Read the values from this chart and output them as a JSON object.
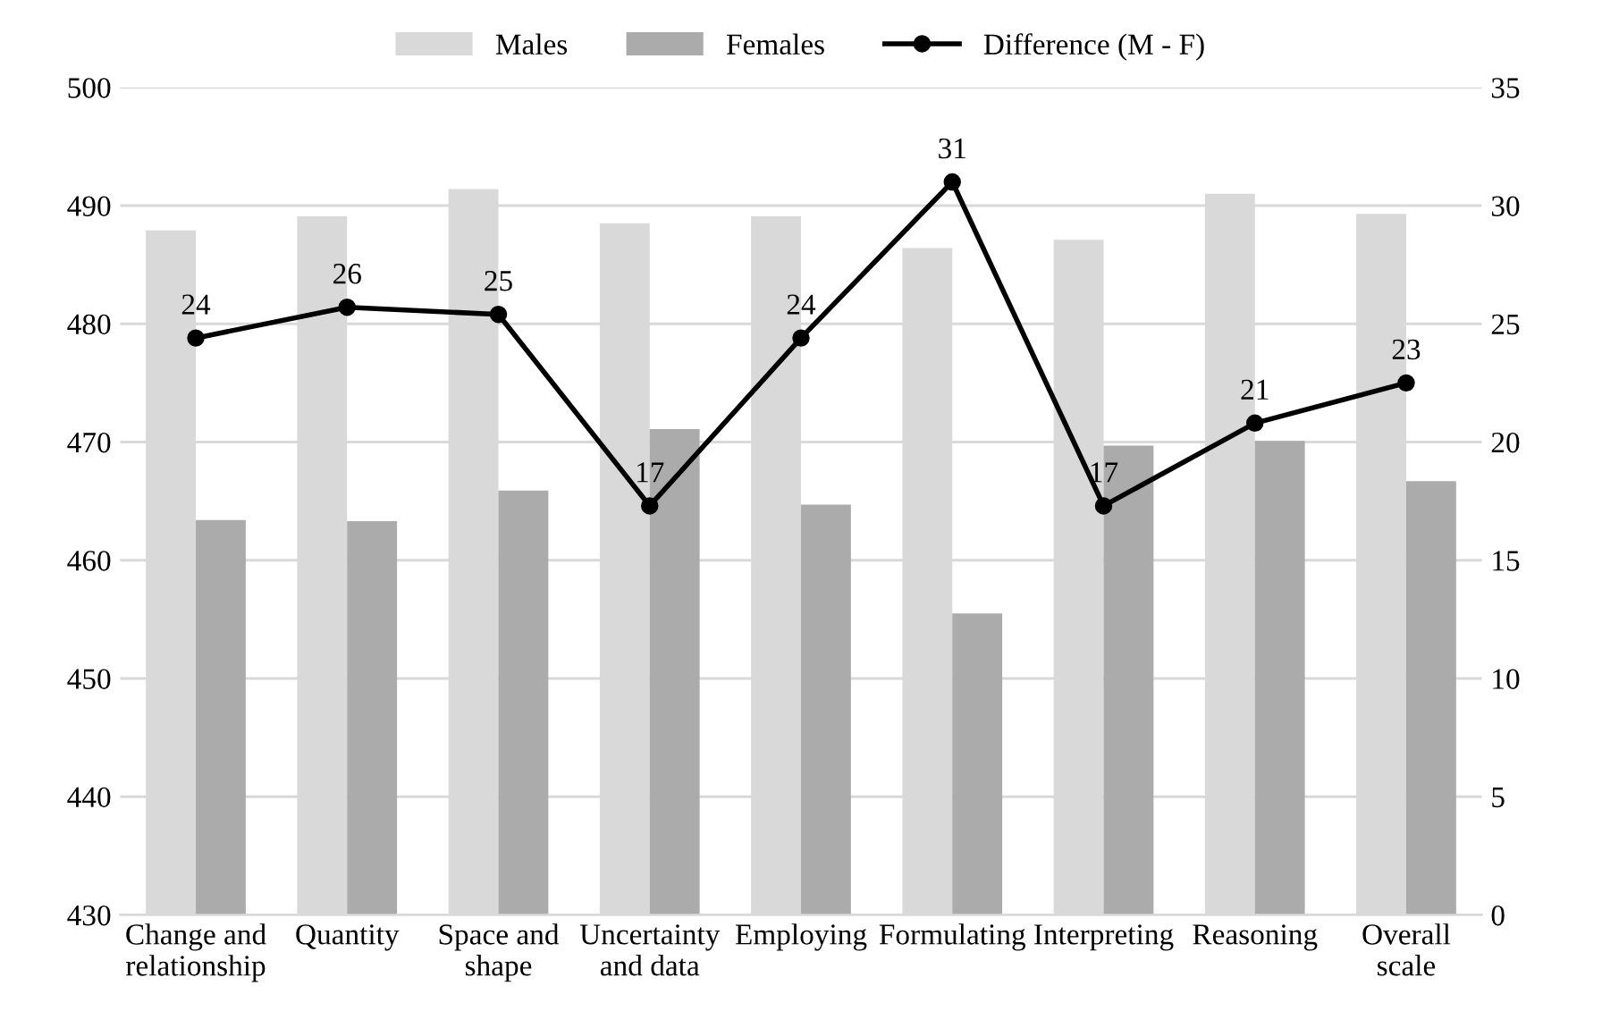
{
  "chart_data": {
    "type": "bar",
    "categories": [
      "Change and\nrelationship",
      "Quantity",
      "Space and\nshape",
      "Uncertainty\nand data",
      "Employing",
      "Formulating",
      "Interpreting",
      "Reasoning",
      "Overall\nscale"
    ],
    "series": [
      {
        "name": "Males",
        "color": "#d9d9d9",
        "values": [
          487.9,
          489.1,
          491.4,
          488.5,
          489.1,
          486.4,
          487.1,
          491.0,
          489.3
        ]
      },
      {
        "name": "Females",
        "color": "#ababab",
        "values": [
          463.4,
          463.3,
          465.9,
          471.1,
          464.7,
          455.5,
          469.7,
          470.1,
          466.7
        ]
      },
      {
        "name": "Difference (M - F)",
        "type": "line",
        "axis": "y2",
        "color": "#000000",
        "marker": "circle",
        "values": [
          24.4,
          25.7,
          25.4,
          17.3,
          24.4,
          31.0,
          17.3,
          20.8,
          22.5
        ],
        "value_labels": [
          "24",
          "26",
          "25",
          "17",
          "24",
          "31",
          "17",
          "21",
          "23"
        ]
      }
    ],
    "ylim": [
      430,
      500
    ],
    "yticks": [
      430,
      440,
      450,
      460,
      470,
      480,
      490,
      500
    ],
    "y2lim": [
      0,
      35
    ],
    "y2ticks": [
      0,
      5,
      10,
      15,
      20,
      25,
      30,
      35
    ],
    "grid": "y",
    "legend": "top"
  }
}
